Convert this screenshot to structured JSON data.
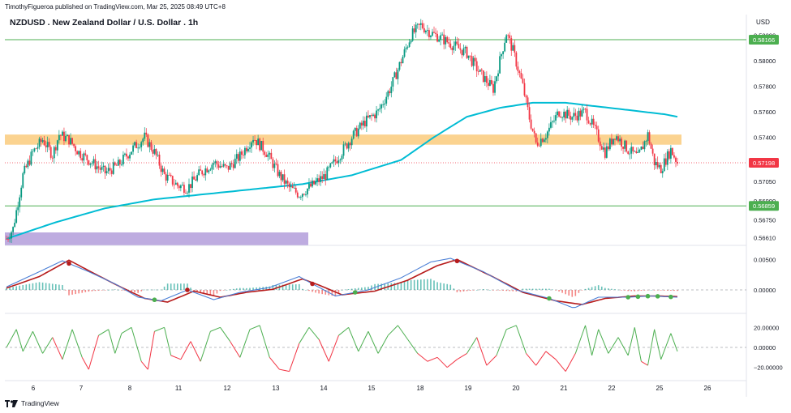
{
  "header": {
    "publish_line": "TimothyFigueroa published on TradingView.com, Mar 25, 2025 08:49 UTC+8",
    "title": "NZDUSD . New Zealand Dollar / U.S. Dollar . 1h"
  },
  "footer": {
    "brand": "TradingView"
  },
  "price_axis": {
    "currency": "USD",
    "ticks": [
      "0.58200",
      "0.58000",
      "0.57800",
      "0.57600",
      "0.57400",
      "0.57200",
      "0.57050",
      "0.56900",
      "0.56750",
      "0.56610"
    ],
    "tick_values": [
      0.582,
      0.58,
      0.578,
      0.576,
      0.574,
      0.572,
      0.5705,
      0.569,
      0.5675,
      0.5661
    ],
    "badges": [
      {
        "label": "0.58166",
        "value": 0.58166,
        "color": "#4caf50"
      },
      {
        "label": "0.57198",
        "value": 0.57198,
        "color": "#f23645"
      },
      {
        "label": "0.56859",
        "value": 0.56859,
        "color": "#4caf50"
      }
    ]
  },
  "oscillator_axis": {
    "ticks": [
      "0.00500",
      "0.00000"
    ],
    "tick_values": [
      0.005,
      0.0
    ]
  },
  "momentum_axis": {
    "ticks": [
      "20.00000",
      "0.00000",
      "−20.00000"
    ],
    "tick_values": [
      20,
      0,
      -20
    ]
  },
  "time_axis": {
    "labels": [
      "6",
      "7",
      "8",
      "11",
      "12",
      "13",
      "14",
      "15",
      "18",
      "19",
      "20",
      "21",
      "22",
      "25",
      "26"
    ]
  },
  "colors": {
    "up": "#089981",
    "down": "#f23645",
    "ma": "#00bcd4",
    "resistance_zone": "#f9c46b",
    "support_zone": "#b39ddb",
    "h_line": "#4caf50",
    "signal_green": "#4caf50",
    "fast_line": "#4a7fd6",
    "slow_line": "#b71c1c"
  },
  "chart_data": [
    {
      "type": "candlestick",
      "title": "NZDUSD . New Zealand Dollar / U.S. Dollar . 1h",
      "ylim": [
        0.5658,
        0.583
      ],
      "x_labels": [
        "6",
        "7",
        "8",
        "11",
        "12",
        "13",
        "14",
        "15",
        "18",
        "19",
        "20",
        "21",
        "22",
        "25",
        "26"
      ],
      "anchors": [
        [
          0,
          0.566
        ],
        [
          4,
          0.5668
        ],
        [
          10,
          0.571
        ],
        [
          16,
          0.5728
        ],
        [
          22,
          0.5738
        ],
        [
          28,
          0.5726
        ],
        [
          32,
          0.5742
        ],
        [
          38,
          0.5738
        ],
        [
          44,
          0.5728
        ],
        [
          52,
          0.572
        ],
        [
          60,
          0.5712
        ],
        [
          68,
          0.5718
        ],
        [
          76,
          0.573
        ],
        [
          84,
          0.574
        ],
        [
          90,
          0.5728
        ],
        [
          96,
          0.571
        ],
        [
          104,
          0.5702
        ],
        [
          110,
          0.57
        ],
        [
          118,
          0.5712
        ],
        [
          126,
          0.572
        ],
        [
          134,
          0.5715
        ],
        [
          142,
          0.5725
        ],
        [
          150,
          0.574
        ],
        [
          158,
          0.5728
        ],
        [
          166,
          0.571
        ],
        [
          172,
          0.57
        ],
        [
          178,
          0.5695
        ],
        [
          186,
          0.5702
        ],
        [
          194,
          0.571
        ],
        [
          202,
          0.5725
        ],
        [
          210,
          0.574
        ],
        [
          218,
          0.5752
        ],
        [
          226,
          0.576
        ],
        [
          234,
          0.578
        ],
        [
          240,
          0.58
        ],
        [
          246,
          0.582
        ],
        [
          252,
          0.5828
        ],
        [
          258,
          0.5822
        ],
        [
          264,
          0.5818
        ],
        [
          272,
          0.5812
        ],
        [
          280,
          0.5806
        ],
        [
          288,
          0.579
        ],
        [
          296,
          0.5778
        ],
        [
          300,
          0.58
        ],
        [
          304,
          0.5822
        ],
        [
          308,
          0.5808
        ],
        [
          314,
          0.578
        ],
        [
          318,
          0.5755
        ],
        [
          322,
          0.5735
        ],
        [
          328,
          0.5742
        ],
        [
          336,
          0.576
        ],
        [
          344,
          0.5756
        ],
        [
          352,
          0.576
        ],
        [
          358,
          0.5745
        ],
        [
          364,
          0.5728
        ],
        [
          370,
          0.5742
        ],
        [
          378,
          0.573
        ],
        [
          384,
          0.5724
        ],
        [
          390,
          0.5742
        ],
        [
          394,
          0.572
        ],
        [
          398,
          0.5715
        ],
        [
          404,
          0.573
        ],
        [
          408,
          0.572
        ]
      ],
      "moving_average": [
        [
          0,
          0.566
        ],
        [
          30,
          0.5673
        ],
        [
          60,
          0.5684
        ],
        [
          90,
          0.5691
        ],
        [
          120,
          0.5695
        ],
        [
          150,
          0.5699
        ],
        [
          180,
          0.5703
        ],
        [
          210,
          0.571
        ],
        [
          240,
          0.5722
        ],
        [
          260,
          0.574
        ],
        [
          280,
          0.5756
        ],
        [
          300,
          0.5763
        ],
        [
          320,
          0.5767
        ],
        [
          340,
          0.5767
        ],
        [
          360,
          0.5764
        ],
        [
          380,
          0.5761
        ],
        [
          400,
          0.5758
        ],
        [
          408,
          0.5756
        ]
      ],
      "resistance_zone": [
        0.5734,
        0.5742
      ],
      "support_zone": [
        0.5655,
        0.5665
      ],
      "horizontal_lines": [
        0.58166,
        0.56859
      ],
      "current_price": 0.57198
    },
    {
      "type": "line",
      "name": "oscillator",
      "ylim": [
        -0.0032,
        0.0068
      ],
      "fast": [
        [
          0,
          0.0005
        ],
        [
          20,
          0.003
        ],
        [
          34,
          0.0048
        ],
        [
          50,
          0.003
        ],
        [
          66,
          0.001
        ],
        [
          80,
          -0.0012
        ],
        [
          94,
          -0.0018
        ],
        [
          110,
          0.0
        ],
        [
          126,
          -0.0016
        ],
        [
          142,
          -0.0004
        ],
        [
          160,
          0.0004
        ],
        [
          178,
          0.0022
        ],
        [
          186,
          0.001
        ],
        [
          200,
          -0.001
        ],
        [
          220,
          0.0
        ],
        [
          240,
          0.002
        ],
        [
          258,
          0.0046
        ],
        [
          270,
          0.0052
        ],
        [
          290,
          0.003
        ],
        [
          310,
          0.0
        ],
        [
          330,
          -0.0014
        ],
        [
          345,
          -0.003
        ],
        [
          360,
          -0.0012
        ],
        [
          378,
          -0.0012
        ],
        [
          392,
          -0.001
        ],
        [
          408,
          -0.0012
        ]
      ],
      "slow": [
        [
          0,
          0.0003
        ],
        [
          20,
          0.0022
        ],
        [
          38,
          0.0049
        ],
        [
          54,
          0.0026
        ],
        [
          70,
          0.0004
        ],
        [
          84,
          -0.0014
        ],
        [
          98,
          -0.002
        ],
        [
          114,
          -0.0002
        ],
        [
          130,
          -0.0012
        ],
        [
          146,
          -0.0004
        ],
        [
          162,
          0.0001
        ],
        [
          180,
          0.0018
        ],
        [
          190,
          0.0008
        ],
        [
          204,
          -0.0008
        ],
        [
          224,
          -0.0002
        ],
        [
          244,
          0.0016
        ],
        [
          262,
          0.004
        ],
        [
          274,
          0.005
        ],
        [
          294,
          0.0024
        ],
        [
          314,
          -0.0004
        ],
        [
          334,
          -0.0018
        ],
        [
          350,
          -0.0024
        ],
        [
          364,
          -0.0014
        ],
        [
          382,
          -0.001
        ],
        [
          396,
          -0.001
        ],
        [
          408,
          -0.0011
        ]
      ],
      "histogram_cycles": 14
    },
    {
      "type": "line",
      "name": "momentum",
      "ylim": [
        -30,
        30
      ],
      "values": [
        [
          0,
          0
        ],
        [
          6,
          18
        ],
        [
          10,
          -4
        ],
        [
          16,
          16
        ],
        [
          22,
          -6
        ],
        [
          28,
          10
        ],
        [
          34,
          -12
        ],
        [
          40,
          18
        ],
        [
          46,
          -10
        ],
        [
          50,
          -22
        ],
        [
          56,
          12
        ],
        [
          62,
          18
        ],
        [
          66,
          -6
        ],
        [
          70,
          14
        ],
        [
          76,
          20
        ],
        [
          82,
          -14
        ],
        [
          86,
          -22
        ],
        [
          90,
          16
        ],
        [
          96,
          20
        ],
        [
          100,
          -8
        ],
        [
          106,
          -12
        ],
        [
          112,
          6
        ],
        [
          118,
          -14
        ],
        [
          124,
          16
        ],
        [
          130,
          20
        ],
        [
          136,
          6
        ],
        [
          142,
          -10
        ],
        [
          148,
          18
        ],
        [
          154,
          22
        ],
        [
          160,
          -10
        ],
        [
          166,
          -22
        ],
        [
          172,
          -24
        ],
        [
          178,
          4
        ],
        [
          184,
          20
        ],
        [
          190,
          8
        ],
        [
          196,
          -14
        ],
        [
          202,
          12
        ],
        [
          208,
          20
        ],
        [
          214,
          -4
        ],
        [
          220,
          16
        ],
        [
          226,
          -6
        ],
        [
          232,
          12
        ],
        [
          238,
          22
        ],
        [
          244,
          8
        ],
        [
          250,
          -6
        ],
        [
          256,
          -14
        ],
        [
          262,
          -10
        ],
        [
          268,
          -20
        ],
        [
          274,
          -12
        ],
        [
          280,
          -6
        ],
        [
          286,
          10
        ],
        [
          292,
          -18
        ],
        [
          298,
          -8
        ],
        [
          304,
          18
        ],
        [
          310,
          22
        ],
        [
          316,
          -6
        ],
        [
          322,
          -18
        ],
        [
          328,
          -4
        ],
        [
          334,
          -12
        ],
        [
          340,
          -24
        ],
        [
          346,
          -6
        ],
        [
          352,
          22
        ],
        [
          356,
          -8
        ],
        [
          360,
          18
        ],
        [
          366,
          -6
        ],
        [
          372,
          10
        ],
        [
          378,
          -8
        ],
        [
          382,
          20
        ],
        [
          386,
          -14
        ],
        [
          390,
          -18
        ],
        [
          394,
          18
        ],
        [
          398,
          -12
        ],
        [
          404,
          14
        ],
        [
          408,
          -4
        ]
      ]
    }
  ]
}
